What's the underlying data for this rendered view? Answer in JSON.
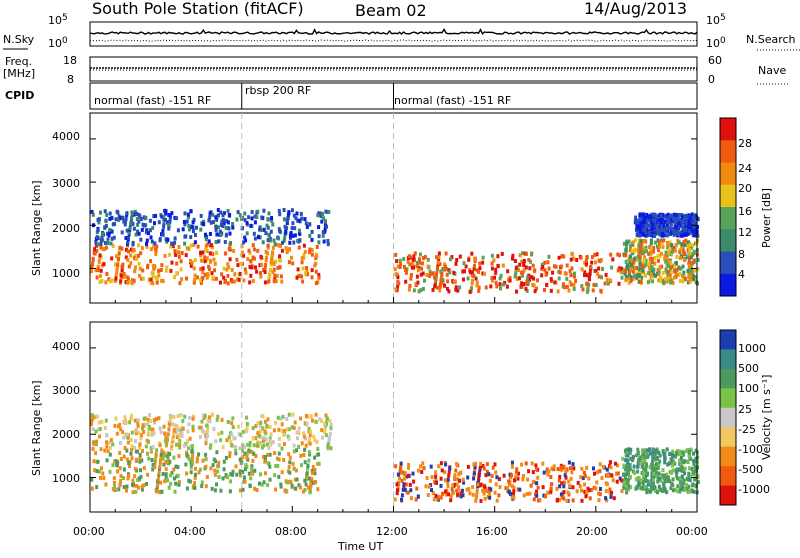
{
  "header": {
    "station": "South Pole Station (fitACF)",
    "beam": "Beam 02",
    "date": "14/Aug/2013"
  },
  "aux_panels": {
    "nsky_label": "N.Sky",
    "nsearch_label": "N.Search",
    "freq_label_1": "Freq.",
    "freq_label_2": "[MHz]",
    "nave_label": "Nave",
    "cpid_label": "CPID",
    "noise_left_ticks": [
      "10^5",
      "10^0"
    ],
    "noise_right_ticks": [
      "10^5",
      "10^0"
    ],
    "freq_ticks": [
      "18",
      "8"
    ],
    "nave_ticks": [
      "60",
      "0"
    ],
    "cpid_segments": [
      {
        "label": "normal (fast) -151 RF",
        "start_hr": 0.0,
        "end_hr": 6.0
      },
      {
        "label": "rbsp 200 RF",
        "start_hr": 6.0,
        "end_hr": 12.0
      },
      {
        "label": "normal (fast) -151 RF",
        "start_hr": 12.0,
        "end_hr": 24.0
      }
    ]
  },
  "chart_data": [
    {
      "type": "heatmap",
      "panel": "power",
      "ylabel": "Slant Range [km]",
      "xlabel": "Time UT",
      "ylim": [
        200,
        4600
      ],
      "xlim_hr": [
        0,
        24
      ],
      "y_ticks": [
        "1000",
        "2000",
        "3000",
        "4000"
      ],
      "x_ticks": [
        "00:00",
        "04:00",
        "08:00",
        "12:00",
        "16:00",
        "20:00",
        "00:00"
      ],
      "colorbar_label": "Power [dB]",
      "colorbar_ticks": [
        "4",
        "8",
        "12",
        "16",
        "20",
        "24",
        "28"
      ],
      "colorbar_range": [
        0,
        30
      ],
      "colors": [
        "#0a1ae0",
        "#2a4fb8",
        "#3b8a6a",
        "#5aa35a",
        "#e8c21a",
        "#f28a10",
        "#f25a10",
        "#e0100a"
      ]
    },
    {
      "type": "heatmap",
      "panel": "velocity",
      "ylabel": "Slant Range [km]",
      "xlabel": "Time UT",
      "ylim": [
        200,
        4600
      ],
      "xlim_hr": [
        0,
        24
      ],
      "y_ticks": [
        "1000",
        "2000",
        "3000",
        "4000"
      ],
      "x_ticks": [
        "00:00",
        "04:00",
        "08:00",
        "12:00",
        "16:00",
        "20:00",
        "00:00"
      ],
      "colorbar_label": "Velocity [m s⁻¹]",
      "colorbar_ticks": [
        "1000",
        "500",
        "100",
        "25",
        "-25",
        "-100",
        "-500",
        "-1000"
      ],
      "colors": [
        "#1a3fb0",
        "#3a8a8a",
        "#4e9a5e",
        "#7ac24a",
        "#c8c8c8",
        "#f2c860",
        "#f28a18",
        "#f25a10",
        "#e0100a"
      ]
    }
  ],
  "x_axis_title": "Time UT"
}
